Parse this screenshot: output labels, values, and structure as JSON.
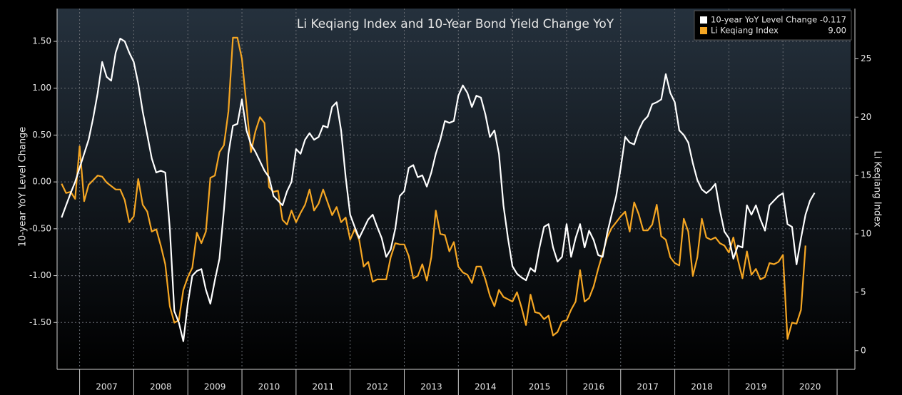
{
  "chart_data": {
    "type": "line",
    "title": "Li Keqiang Index and 10-Year Bond Yield Change YoY",
    "y_label": "10-year YoY Level Change",
    "y2_label": "Li Keqiang Index",
    "legend": "top-right",
    "grid": true,
    "xlim": [
      "2006-08",
      "2021-04"
    ],
    "year_labels": [
      2007,
      2008,
      2009,
      2010,
      2011,
      2012,
      2013,
      2014,
      2015,
      2016,
      2017,
      2018,
      2019,
      2020
    ],
    "ylim": [
      -2.0,
      1.85
    ],
    "yticks": [
      {
        "value": -1.5,
        "label": "-1.50"
      },
      {
        "value": -1.0,
        "label": "-1.00"
      },
      {
        "value": -0.5,
        "label": "-0.50"
      },
      {
        "value": 0,
        "label": "0.00"
      },
      {
        "value": 0.5,
        "label": "0.50"
      },
      {
        "value": 1.0,
        "label": "1.00"
      },
      {
        "value": 1.5,
        "label": "1.50"
      }
    ],
    "y2lim": [
      -1.6,
      29.3
    ],
    "y2ticks": [
      0,
      5,
      10,
      15,
      20,
      25
    ],
    "x": [
      "2006-09",
      "2006-10",
      "2006-11",
      "2006-12",
      "2007-01",
      "2007-02",
      "2007-03",
      "2007-04",
      "2007-05",
      "2007-06",
      "2007-07",
      "2007-08",
      "2007-09",
      "2007-10",
      "2007-11",
      "2007-12",
      "2008-01",
      "2008-02",
      "2008-03",
      "2008-04",
      "2008-05",
      "2008-06",
      "2008-07",
      "2008-08",
      "2008-09",
      "2008-10",
      "2008-11",
      "2008-12",
      "2009-01",
      "2009-02",
      "2009-03",
      "2009-04",
      "2009-05",
      "2009-06",
      "2009-07",
      "2009-08",
      "2009-09",
      "2009-10",
      "2009-11",
      "2009-12",
      "2010-01",
      "2010-02",
      "2010-03",
      "2010-04",
      "2010-05",
      "2010-06",
      "2010-07",
      "2010-08",
      "2010-09",
      "2010-10",
      "2010-11",
      "2010-12",
      "2011-01",
      "2011-02",
      "2011-03",
      "2011-04",
      "2011-05",
      "2011-06",
      "2011-07",
      "2011-08",
      "2011-09",
      "2011-10",
      "2011-11",
      "2011-12",
      "2012-01",
      "2012-02",
      "2012-03",
      "2012-04",
      "2012-05",
      "2012-06",
      "2012-07",
      "2012-08",
      "2012-09",
      "2012-10",
      "2012-11",
      "2012-12",
      "2013-01",
      "2013-02",
      "2013-03",
      "2013-04",
      "2013-05",
      "2013-06",
      "2013-07",
      "2013-08",
      "2013-09",
      "2013-10",
      "2013-11",
      "2013-12",
      "2014-01",
      "2014-02",
      "2014-03",
      "2014-04",
      "2014-05",
      "2014-06",
      "2014-07",
      "2014-08",
      "2014-09",
      "2014-10",
      "2014-11",
      "2014-12",
      "2015-01",
      "2015-02",
      "2015-03",
      "2015-04",
      "2015-05",
      "2015-06",
      "2015-07",
      "2015-08",
      "2015-09",
      "2015-10",
      "2015-11",
      "2015-12",
      "2016-01",
      "2016-02",
      "2016-03",
      "2016-04",
      "2016-05",
      "2016-06",
      "2016-07",
      "2016-08",
      "2016-09",
      "2016-10",
      "2016-11",
      "2016-12",
      "2017-01",
      "2017-02",
      "2017-03",
      "2017-04",
      "2017-05",
      "2017-06",
      "2017-07",
      "2017-08",
      "2017-09",
      "2017-10",
      "2017-11",
      "2017-12",
      "2018-01",
      "2018-02",
      "2018-03",
      "2018-04",
      "2018-05",
      "2018-06",
      "2018-07",
      "2018-08",
      "2018-09",
      "2018-10",
      "2018-11",
      "2018-12",
      "2019-01",
      "2019-02",
      "2019-03",
      "2019-04",
      "2019-05",
      "2019-06",
      "2019-07",
      "2019-08",
      "2019-09",
      "2019-10",
      "2019-11",
      "2019-12",
      "2020-01",
      "2020-02",
      "2020-03",
      "2020-04",
      "2020-05",
      "2020-06",
      "2020-07",
      "2020-08"
    ],
    "series": [
      {
        "name": "10-year YoY Level Change",
        "legend_value": "-0.117",
        "color": "#ffffff",
        "axis": "y",
        "values": [
          -0.38,
          -0.25,
          -0.12,
          0.0,
          0.15,
          0.3,
          0.45,
          0.68,
          0.95,
          1.28,
          1.12,
          1.08,
          1.38,
          1.53,
          1.5,
          1.38,
          1.28,
          1.05,
          0.75,
          0.5,
          0.25,
          0.1,
          0.12,
          0.1,
          -0.5,
          -1.38,
          -1.5,
          -1.7,
          -1.3,
          -1.0,
          -0.95,
          -0.93,
          -1.15,
          -1.3,
          -1.05,
          -0.82,
          -0.3,
          0.3,
          0.6,
          0.62,
          0.88,
          0.55,
          0.4,
          0.32,
          0.22,
          0.12,
          0.05,
          -0.15,
          -0.2,
          -0.25,
          -0.1,
          0.0,
          0.35,
          0.3,
          0.45,
          0.52,
          0.45,
          0.48,
          0.6,
          0.58,
          0.8,
          0.85,
          0.55,
          0.05,
          -0.35,
          -0.48,
          -0.6,
          -0.5,
          -0.4,
          -0.35,
          -0.48,
          -0.6,
          -0.8,
          -0.72,
          -0.5,
          -0.15,
          -0.1,
          0.15,
          0.18,
          0.05,
          0.07,
          -0.05,
          0.1,
          0.3,
          0.45,
          0.65,
          0.63,
          0.65,
          0.92,
          1.03,
          0.95,
          0.8,
          0.92,
          0.9,
          0.72,
          0.48,
          0.55,
          0.3,
          -0.25,
          -0.6,
          -0.9,
          -0.98,
          -1.02,
          -1.05,
          -0.92,
          -0.96,
          -0.7,
          -0.48,
          -0.45,
          -0.7,
          -0.85,
          -0.8,
          -0.45,
          -0.8,
          -0.6,
          -0.45,
          -0.7,
          -0.52,
          -0.62,
          -0.78,
          -0.8,
          -0.55,
          -0.35,
          -0.15,
          0.15,
          0.48,
          0.42,
          0.4,
          0.55,
          0.65,
          0.7,
          0.83,
          0.85,
          0.88,
          1.15,
          0.95,
          0.85,
          0.55,
          0.5,
          0.42,
          0.2,
          0.02,
          -0.08,
          -0.12,
          -0.08,
          -0.02,
          -0.3,
          -0.53,
          -0.6,
          -0.82,
          -0.68,
          -0.7,
          -0.25,
          -0.35,
          -0.25,
          -0.4,
          -0.52,
          -0.25,
          -0.2,
          -0.15,
          -0.12,
          -0.45,
          -0.48,
          -0.88,
          -0.6,
          -0.35,
          -0.2,
          -0.117
        ]
      },
      {
        "name": "Li Keqiang Index",
        "legend_value": "9.00",
        "color": "#f5a623",
        "axis": "y2",
        "values": [
          14.3,
          13.5,
          13.6,
          13.0,
          17.5,
          12.8,
          14.2,
          14.6,
          15.0,
          14.9,
          14.4,
          14.1,
          13.8,
          13.8,
          12.9,
          11.0,
          11.5,
          14.7,
          12.5,
          11.9,
          10.2,
          10.4,
          9.0,
          7.4,
          3.8,
          2.4,
          2.6,
          5.2,
          6.3,
          7.1,
          10.1,
          9.2,
          10.2,
          14.8,
          15.0,
          17.0,
          17.6,
          20.5,
          26.8,
          26.8,
          25.0,
          21.0,
          17.0,
          18.8,
          20.0,
          19.5,
          14.0,
          13.6,
          13.7,
          11.2,
          10.8,
          12.0,
          11.0,
          11.8,
          12.5,
          13.8,
          12.0,
          12.6,
          13.8,
          12.7,
          11.6,
          12.3,
          11.0,
          11.4,
          9.5,
          10.4,
          9.5,
          7.2,
          7.6,
          5.9,
          6.1,
          6.1,
          6.1,
          8.0,
          9.2,
          9.1,
          9.1,
          8.1,
          6.2,
          6.4,
          7.4,
          6.0,
          8.0,
          12.0,
          10.0,
          9.9,
          8.5,
          9.3,
          7.2,
          6.7,
          6.5,
          5.8,
          7.2,
          7.2,
          6.1,
          4.7,
          3.8,
          5.2,
          4.6,
          4.4,
          4.2,
          5.0,
          3.7,
          2.2,
          4.8,
          3.3,
          3.2,
          2.7,
          3.0,
          1.3,
          1.6,
          2.5,
          2.6,
          3.5,
          4.2,
          6.9,
          4.2,
          4.5,
          5.5,
          7.0,
          8.3,
          9.7,
          10.5,
          11.0,
          11.5,
          11.9,
          10.2,
          12.7,
          11.7,
          10.3,
          10.3,
          10.8,
          12.5,
          9.8,
          9.5,
          8.0,
          7.5,
          7.3,
          11.3,
          10.2,
          6.4,
          8.0,
          11.3,
          9.7,
          9.5,
          9.7,
          9.2,
          9.0,
          8.4,
          9.7,
          7.8,
          6.2,
          8.5,
          6.5,
          7.0,
          6.1,
          6.3,
          7.5,
          7.4,
          7.6,
          8.2,
          1.0,
          2.4,
          2.3,
          3.5,
          9.0,
          null,
          null
        ]
      }
    ]
  }
}
